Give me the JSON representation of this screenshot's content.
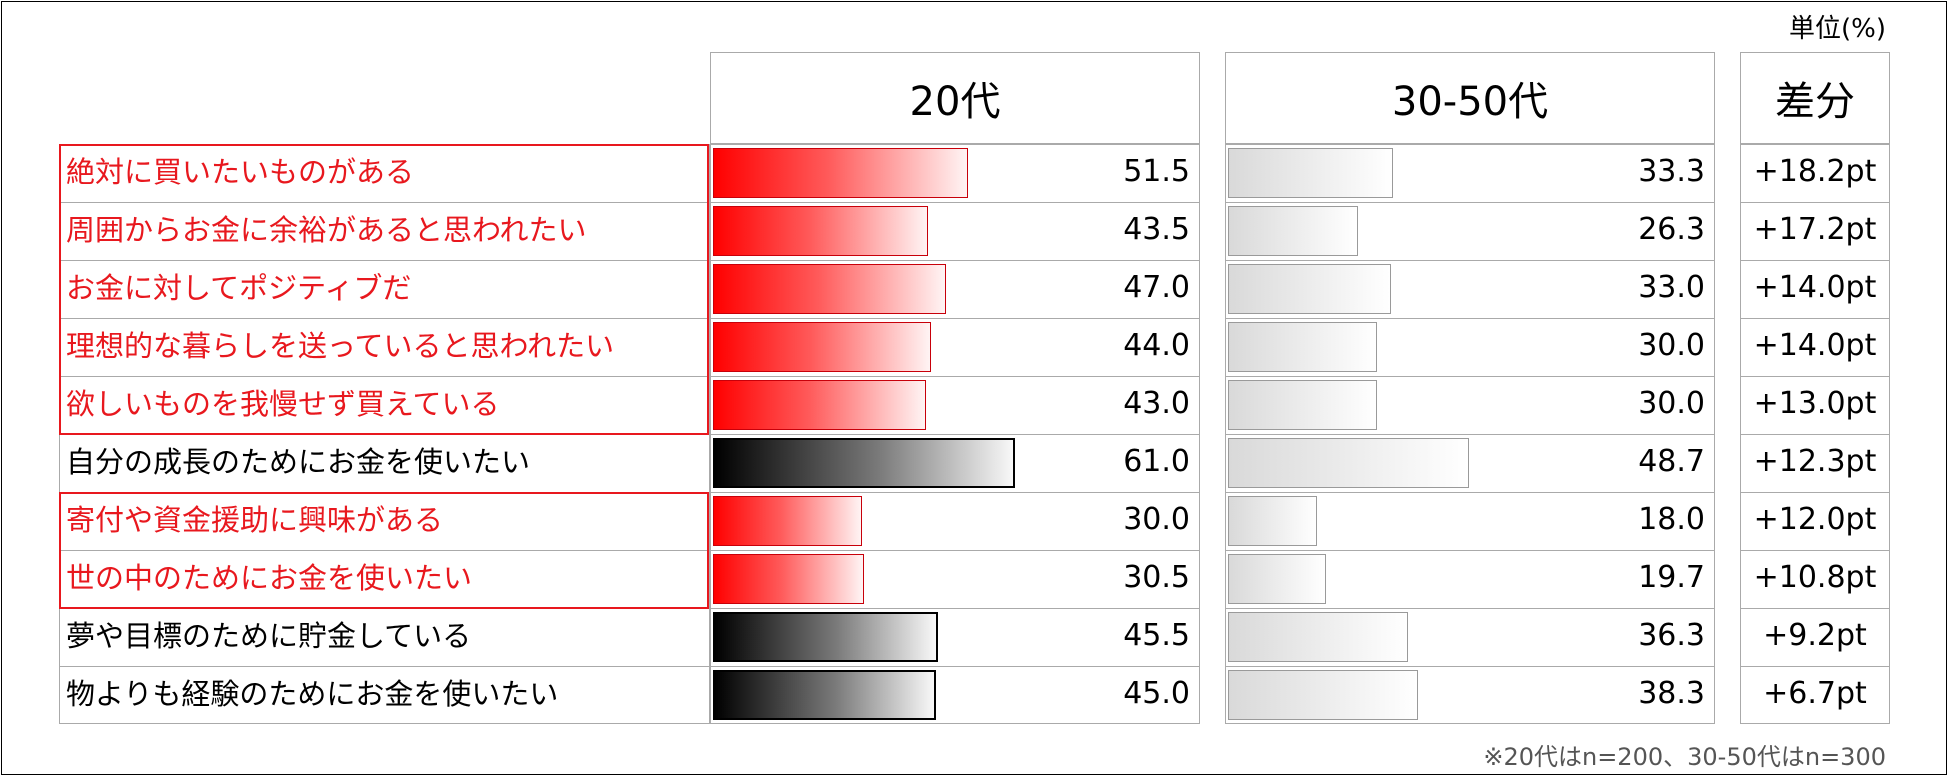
{
  "unit_label": "単位(%)",
  "footnote": "※20代はn=200、30-50代はn=300",
  "columns": {
    "young": "20代",
    "older": "30-50代",
    "diff": "差分"
  },
  "colors": {
    "highlight": "#e8181e",
    "red_bar": "#ff0000",
    "black_bar": "#000000",
    "gray_bar": "#d9d9d9"
  },
  "chart_data": {
    "type": "bar",
    "title": "",
    "categories": [
      "絶対に買いたいものがある",
      "周囲からお金に余裕があると思われたい",
      "お金に対してポジティブだ",
      "理想的な暮らしを送っていると思われたい",
      "欲しいものを我慢せず買えている",
      "自分の成長のためにお金を使いたい",
      "寄付や資金援助に興味がある",
      "世の中のためにお金を使いたい",
      "夢や目標のために貯金している",
      "物よりも経験のためにお金を使いたい"
    ],
    "highlighted": [
      true,
      true,
      true,
      true,
      true,
      false,
      true,
      true,
      false,
      false
    ],
    "series": [
      {
        "name": "20代",
        "values": [
          51.5,
          43.5,
          47.0,
          44.0,
          43.0,
          61.0,
          30.0,
          30.5,
          45.5,
          45.0
        ]
      },
      {
        "name": "30-50代",
        "values": [
          33.3,
          26.3,
          33.0,
          30.0,
          30.0,
          48.7,
          18.0,
          19.7,
          36.3,
          38.3
        ]
      }
    ],
    "value_labels_young": [
      "51.5",
      "43.5",
      "47.0",
      "44.0",
      "43.0",
      "61.0",
      "30.0",
      "30.5",
      "45.5",
      "45.0"
    ],
    "value_labels_older": [
      "33.3",
      "26.3",
      "33.0",
      "30.0",
      "30.0",
      "48.7",
      "18.0",
      "19.7",
      "36.3",
      "38.3"
    ],
    "diff_labels": [
      "+18.2pt",
      "+17.2pt",
      "+14.0pt",
      "+14.0pt",
      "+13.0pt",
      "+12.3pt",
      "+12.0pt",
      "+10.8pt",
      "+9.2pt",
      "+6.7pt"
    ],
    "xlim": [
      0,
      100
    ],
    "grid": false
  }
}
